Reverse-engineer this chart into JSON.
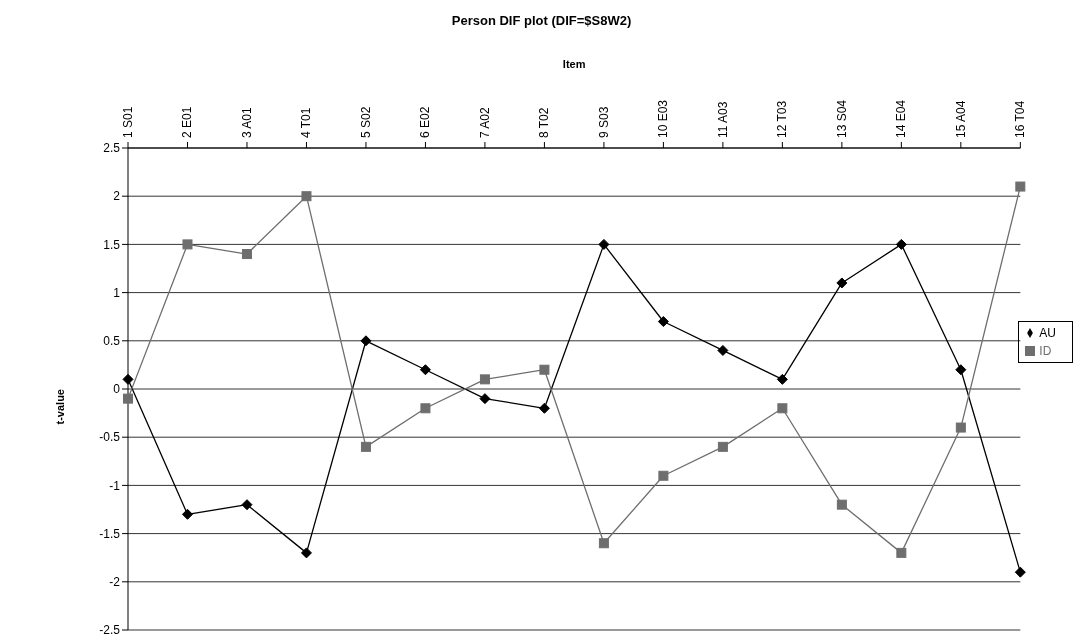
{
  "chart_data": {
    "type": "line",
    "title": "Person DIF plot (DIF=$S8W2)",
    "xlabel": "Item",
    "ylabel": "t-value",
    "categories": [
      "1 S01",
      "2 E01",
      "3 A01",
      "4 T01",
      "5 S02",
      "6 E02",
      "7 A02",
      "8 T02",
      "9 S03",
      "10 E03",
      "11 A03",
      "12 T03",
      "13 S04",
      "14 E04",
      "15 A04",
      "16 T04"
    ],
    "series": [
      {
        "name": "AU",
        "color": "#000000",
        "marker": "diamond",
        "values": [
          0.1,
          -1.3,
          -1.2,
          -1.7,
          0.5,
          0.2,
          -0.1,
          -0.2,
          1.5,
          0.7,
          0.4,
          0.1,
          1.1,
          1.5,
          0.2,
          -1.9
        ]
      },
      {
        "name": "ID",
        "color": "#6e6e6e",
        "marker": "square",
        "values": [
          -0.1,
          1.5,
          1.4,
          2.0,
          -0.6,
          -0.2,
          0.1,
          0.2,
          -1.6,
          -0.9,
          -0.6,
          -0.2,
          -1.2,
          -1.7,
          -0.4,
          2.1
        ]
      }
    ],
    "ylim": [
      -2.5,
      2.5
    ],
    "yticks": [
      -2.5,
      -2,
      -1.5,
      -1,
      -0.5,
      0,
      0.5,
      1,
      1.5,
      2,
      2.5
    ],
    "grid": "y",
    "legend": "right",
    "line_style": "solid"
  }
}
